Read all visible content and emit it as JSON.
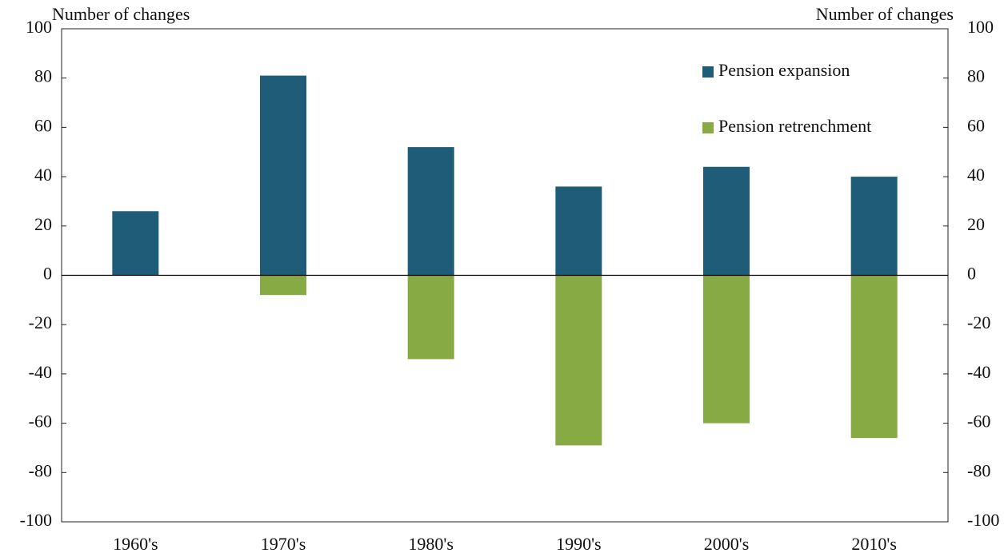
{
  "chart_data": {
    "type": "bar",
    "y_label": "Number of changes",
    "y2_label": "Number of changes",
    "categories": [
      "1960's",
      "1970's",
      "1980's",
      "1990's",
      "2000's",
      "2010's"
    ],
    "series": [
      {
        "name": "Pension expansion",
        "color": "#1f5c78",
        "values": [
          26,
          81,
          52,
          36,
          44,
          40
        ]
      },
      {
        "name": "Pension retrenchment",
        "color": "#88aa44",
        "values": [
          0,
          -8,
          -34,
          -69,
          -60,
          -66
        ]
      }
    ],
    "ylim": [
      -100,
      100
    ],
    "yticks": [
      -100,
      -80,
      -60,
      -40,
      -20,
      0,
      20,
      40,
      60,
      80,
      100
    ],
    "y2lim": [
      -100,
      100
    ],
    "y2ticks": [
      -100,
      -80,
      -60,
      -40,
      -20,
      0,
      20,
      40,
      60,
      80,
      100
    ],
    "legend": "top-right"
  }
}
